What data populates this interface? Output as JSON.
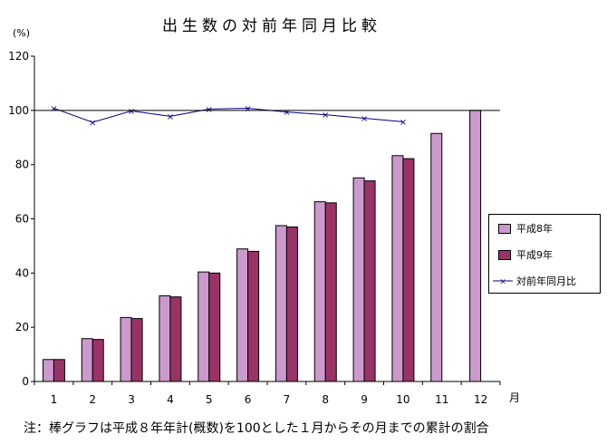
{
  "chart_data": {
    "type": "bar",
    "title": "出生数の対前年同月比較",
    "y_unit_label": "(%)",
    "xlabel": "月",
    "ylim": [
      0,
      120
    ],
    "yticks": [
      0,
      20,
      40,
      60,
      80,
      100,
      120
    ],
    "grid": false,
    "legend_position": "right",
    "categories": [
      "1",
      "2",
      "3",
      "4",
      "5",
      "6",
      "7",
      "8",
      "9",
      "10",
      "11",
      "12"
    ],
    "series": [
      {
        "name": "平成8年",
        "kind": "bar",
        "color": "#cc99cc",
        "values": [
          8.1,
          15.8,
          23.6,
          31.6,
          40.4,
          48.9,
          57.5,
          66.3,
          75.1,
          83.3,
          91.5,
          100
        ]
      },
      {
        "name": "平成9年",
        "kind": "bar",
        "color": "#993366",
        "values": [
          8.1,
          15.5,
          23.2,
          31.2,
          40.0,
          48.0,
          57.0,
          65.9,
          74.0,
          82.2,
          null,
          null
        ]
      },
      {
        "name": "対前年同月比",
        "kind": "line",
        "color": "#000080",
        "values": [
          100.8,
          95.6,
          99.8,
          97.8,
          100.5,
          100.8,
          99.4,
          98.4,
          97.1,
          95.8,
          null,
          null
        ]
      }
    ],
    "reference_line": 100
  },
  "footnote": "注：棒グラフは平成８年年計(概数)を100とした１月からその月までの累計の割合"
}
